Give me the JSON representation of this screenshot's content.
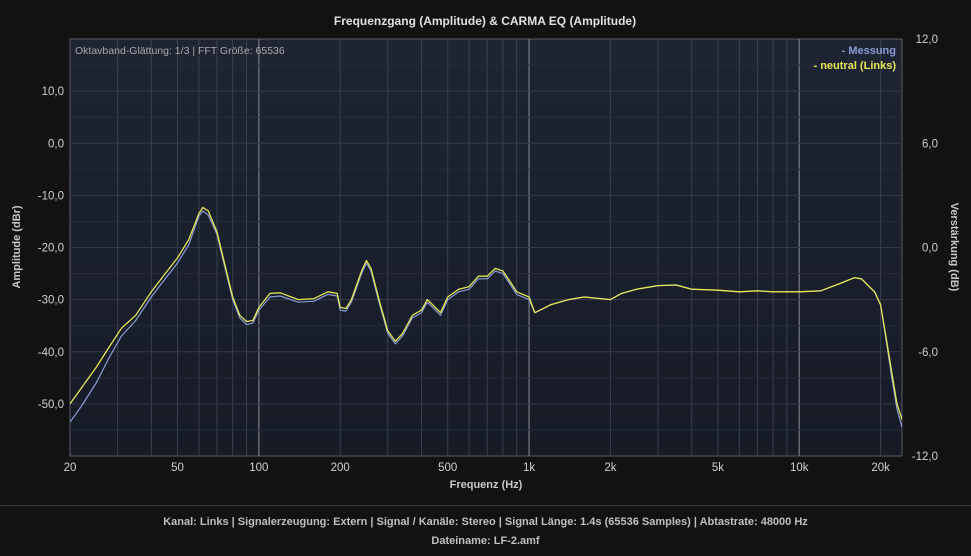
{
  "chart_data": {
    "type": "line",
    "title": "Frequenzgang (Amplitude) & CARMA EQ (Amplitude)",
    "annotation": "Oktavband-Glättung: 1/3 | FFT Größe: 65536",
    "xlabel": "Frequenz (Hz)",
    "ylabel": "Amplitude (dBr)",
    "y2label": "Verstärkung (dB)",
    "x_scale": "log",
    "xlim": [
      20,
      24000
    ],
    "ylim": [
      -60,
      20
    ],
    "y2lim": [
      -12,
      12
    ],
    "grid": true,
    "legend_position": "top-right",
    "x_ticks": [
      {
        "value": 20,
        "label": "20"
      },
      {
        "value": 50,
        "label": "50"
      },
      {
        "value": 100,
        "label": "100"
      },
      {
        "value": 200,
        "label": "200"
      },
      {
        "value": 500,
        "label": "500"
      },
      {
        "value": 1000,
        "label": "1k"
      },
      {
        "value": 2000,
        "label": "2k"
      },
      {
        "value": 5000,
        "label": "5k"
      },
      {
        "value": 10000,
        "label": "10k"
      },
      {
        "value": 20000,
        "label": "20k"
      }
    ],
    "y_ticks": [
      {
        "value": 10,
        "label": "10,0"
      },
      {
        "value": 0,
        "label": "0,0"
      },
      {
        "value": -10,
        "label": "-10,0"
      },
      {
        "value": -20,
        "label": "-20,0"
      },
      {
        "value": -30,
        "label": "-30,0"
      },
      {
        "value": -40,
        "label": "-40,0"
      },
      {
        "value": -50,
        "label": "-50,0"
      }
    ],
    "y2_ticks": [
      {
        "value": 12,
        "label": "12,0"
      },
      {
        "value": 6,
        "label": "6,0"
      },
      {
        "value": 0,
        "label": "0,0"
      },
      {
        "value": -6,
        "label": "-6,0"
      },
      {
        "value": -12,
        "label": "-12,0"
      }
    ],
    "series": [
      {
        "name": "- Messung",
        "color": "#8a9bd4",
        "points": [
          [
            20,
            -53.5
          ],
          [
            22,
            -50.5
          ],
          [
            25,
            -46
          ],
          [
            28,
            -41
          ],
          [
            31,
            -37
          ],
          [
            35,
            -34
          ],
          [
            40,
            -29.5
          ],
          [
            45,
            -26
          ],
          [
            50,
            -23
          ],
          [
            55,
            -19.5
          ],
          [
            60,
            -14
          ],
          [
            62,
            -13
          ],
          [
            65,
            -13.8
          ],
          [
            70,
            -17.5
          ],
          [
            75,
            -24
          ],
          [
            80,
            -30
          ],
          [
            85,
            -33.5
          ],
          [
            90,
            -34.8
          ],
          [
            95,
            -34.5
          ],
          [
            100,
            -32
          ],
          [
            110,
            -29.5
          ],
          [
            120,
            -29.3
          ],
          [
            140,
            -30.5
          ],
          [
            160,
            -30.3
          ],
          [
            180,
            -29
          ],
          [
            195,
            -29.3
          ],
          [
            200,
            -32
          ],
          [
            210,
            -32.2
          ],
          [
            220,
            -30.5
          ],
          [
            240,
            -25
          ],
          [
            250,
            -23
          ],
          [
            260,
            -24.5
          ],
          [
            280,
            -31
          ],
          [
            300,
            -36.5
          ],
          [
            320,
            -38.5
          ],
          [
            340,
            -37
          ],
          [
            370,
            -33.5
          ],
          [
            400,
            -32.5
          ],
          [
            420,
            -30.5
          ],
          [
            440,
            -31.5
          ],
          [
            470,
            -33
          ],
          [
            500,
            -30
          ],
          [
            550,
            -28.5
          ],
          [
            600,
            -28
          ],
          [
            650,
            -26
          ],
          [
            700,
            -26
          ],
          [
            750,
            -24.5
          ],
          [
            800,
            -25
          ],
          [
            850,
            -27
          ],
          [
            900,
            -29
          ],
          [
            1000,
            -30
          ],
          [
            1050,
            -32.5
          ],
          [
            1100,
            -32
          ],
          [
            1200,
            -31
          ],
          [
            1400,
            -30
          ],
          [
            1600,
            -29.5
          ],
          [
            2000,
            -30
          ],
          [
            2200,
            -28.8
          ],
          [
            2500,
            -28
          ],
          [
            3000,
            -27.3
          ],
          [
            3500,
            -27.2
          ],
          [
            4000,
            -28
          ],
          [
            5000,
            -28.2
          ],
          [
            6000,
            -28.5
          ],
          [
            7000,
            -28.3
          ],
          [
            8000,
            -28.5
          ],
          [
            10000,
            -28.5
          ],
          [
            12000,
            -28.3
          ],
          [
            14000,
            -27
          ],
          [
            16000,
            -25.8
          ],
          [
            17000,
            -26
          ],
          [
            18000,
            -27.3
          ],
          [
            19000,
            -28.5
          ],
          [
            20000,
            -31
          ],
          [
            21000,
            -38
          ],
          [
            22000,
            -45
          ],
          [
            23000,
            -51
          ],
          [
            24000,
            -54.5
          ]
        ]
      },
      {
        "name": "- neutral (Links)",
        "color": "#e6e655",
        "points": [
          [
            20,
            -50
          ],
          [
            22,
            -47
          ],
          [
            25,
            -43
          ],
          [
            28,
            -39
          ],
          [
            31,
            -35.5
          ],
          [
            35,
            -33
          ],
          [
            40,
            -28.5
          ],
          [
            45,
            -25
          ],
          [
            50,
            -22
          ],
          [
            55,
            -18.5
          ],
          [
            60,
            -13.5
          ],
          [
            62,
            -12.3
          ],
          [
            65,
            -13
          ],
          [
            70,
            -17
          ],
          [
            75,
            -23.5
          ],
          [
            80,
            -29.5
          ],
          [
            85,
            -33
          ],
          [
            90,
            -34.2
          ],
          [
            95,
            -34
          ],
          [
            100,
            -31.5
          ],
          [
            110,
            -28.8
          ],
          [
            120,
            -28.7
          ],
          [
            140,
            -30
          ],
          [
            160,
            -29.8
          ],
          [
            180,
            -28.5
          ],
          [
            195,
            -28.8
          ],
          [
            200,
            -31.5
          ],
          [
            210,
            -31.7
          ],
          [
            220,
            -30
          ],
          [
            240,
            -24.5
          ],
          [
            250,
            -22.5
          ],
          [
            260,
            -24
          ],
          [
            280,
            -30.5
          ],
          [
            300,
            -36
          ],
          [
            320,
            -38
          ],
          [
            340,
            -36.5
          ],
          [
            370,
            -33
          ],
          [
            400,
            -32
          ],
          [
            420,
            -30
          ],
          [
            440,
            -31
          ],
          [
            470,
            -32.5
          ],
          [
            500,
            -29.5
          ],
          [
            550,
            -28
          ],
          [
            600,
            -27.5
          ],
          [
            650,
            -25.5
          ],
          [
            700,
            -25.5
          ],
          [
            750,
            -24
          ],
          [
            800,
            -24.5
          ],
          [
            850,
            -26.5
          ],
          [
            900,
            -28.5
          ],
          [
            1000,
            -29.5
          ],
          [
            1050,
            -32.5
          ],
          [
            1100,
            -32
          ],
          [
            1200,
            -31
          ],
          [
            1400,
            -30
          ],
          [
            1600,
            -29.5
          ],
          [
            2000,
            -30
          ],
          [
            2200,
            -28.8
          ],
          [
            2500,
            -28
          ],
          [
            3000,
            -27.3
          ],
          [
            3500,
            -27.2
          ],
          [
            4000,
            -28
          ],
          [
            5000,
            -28.2
          ],
          [
            6000,
            -28.5
          ],
          [
            7000,
            -28.3
          ],
          [
            8000,
            -28.5
          ],
          [
            10000,
            -28.5
          ],
          [
            12000,
            -28.3
          ],
          [
            14000,
            -27
          ],
          [
            16000,
            -25.8
          ],
          [
            17000,
            -26
          ],
          [
            18000,
            -27.3
          ],
          [
            19000,
            -28.5
          ],
          [
            20000,
            -31
          ],
          [
            21000,
            -37.5
          ],
          [
            22000,
            -44
          ],
          [
            23000,
            -50
          ],
          [
            24000,
            -53
          ]
        ]
      }
    ]
  },
  "footer": {
    "line1": "Kanal: Links  |  Signalerzeugung: Extern   |  Signal / Kanäle: Stereo  |  Signal Länge: 1.4s (65536 Samples)  |  Abtastrate: 48000 Hz",
    "line2": "Dateiname: LF-2.amf"
  }
}
